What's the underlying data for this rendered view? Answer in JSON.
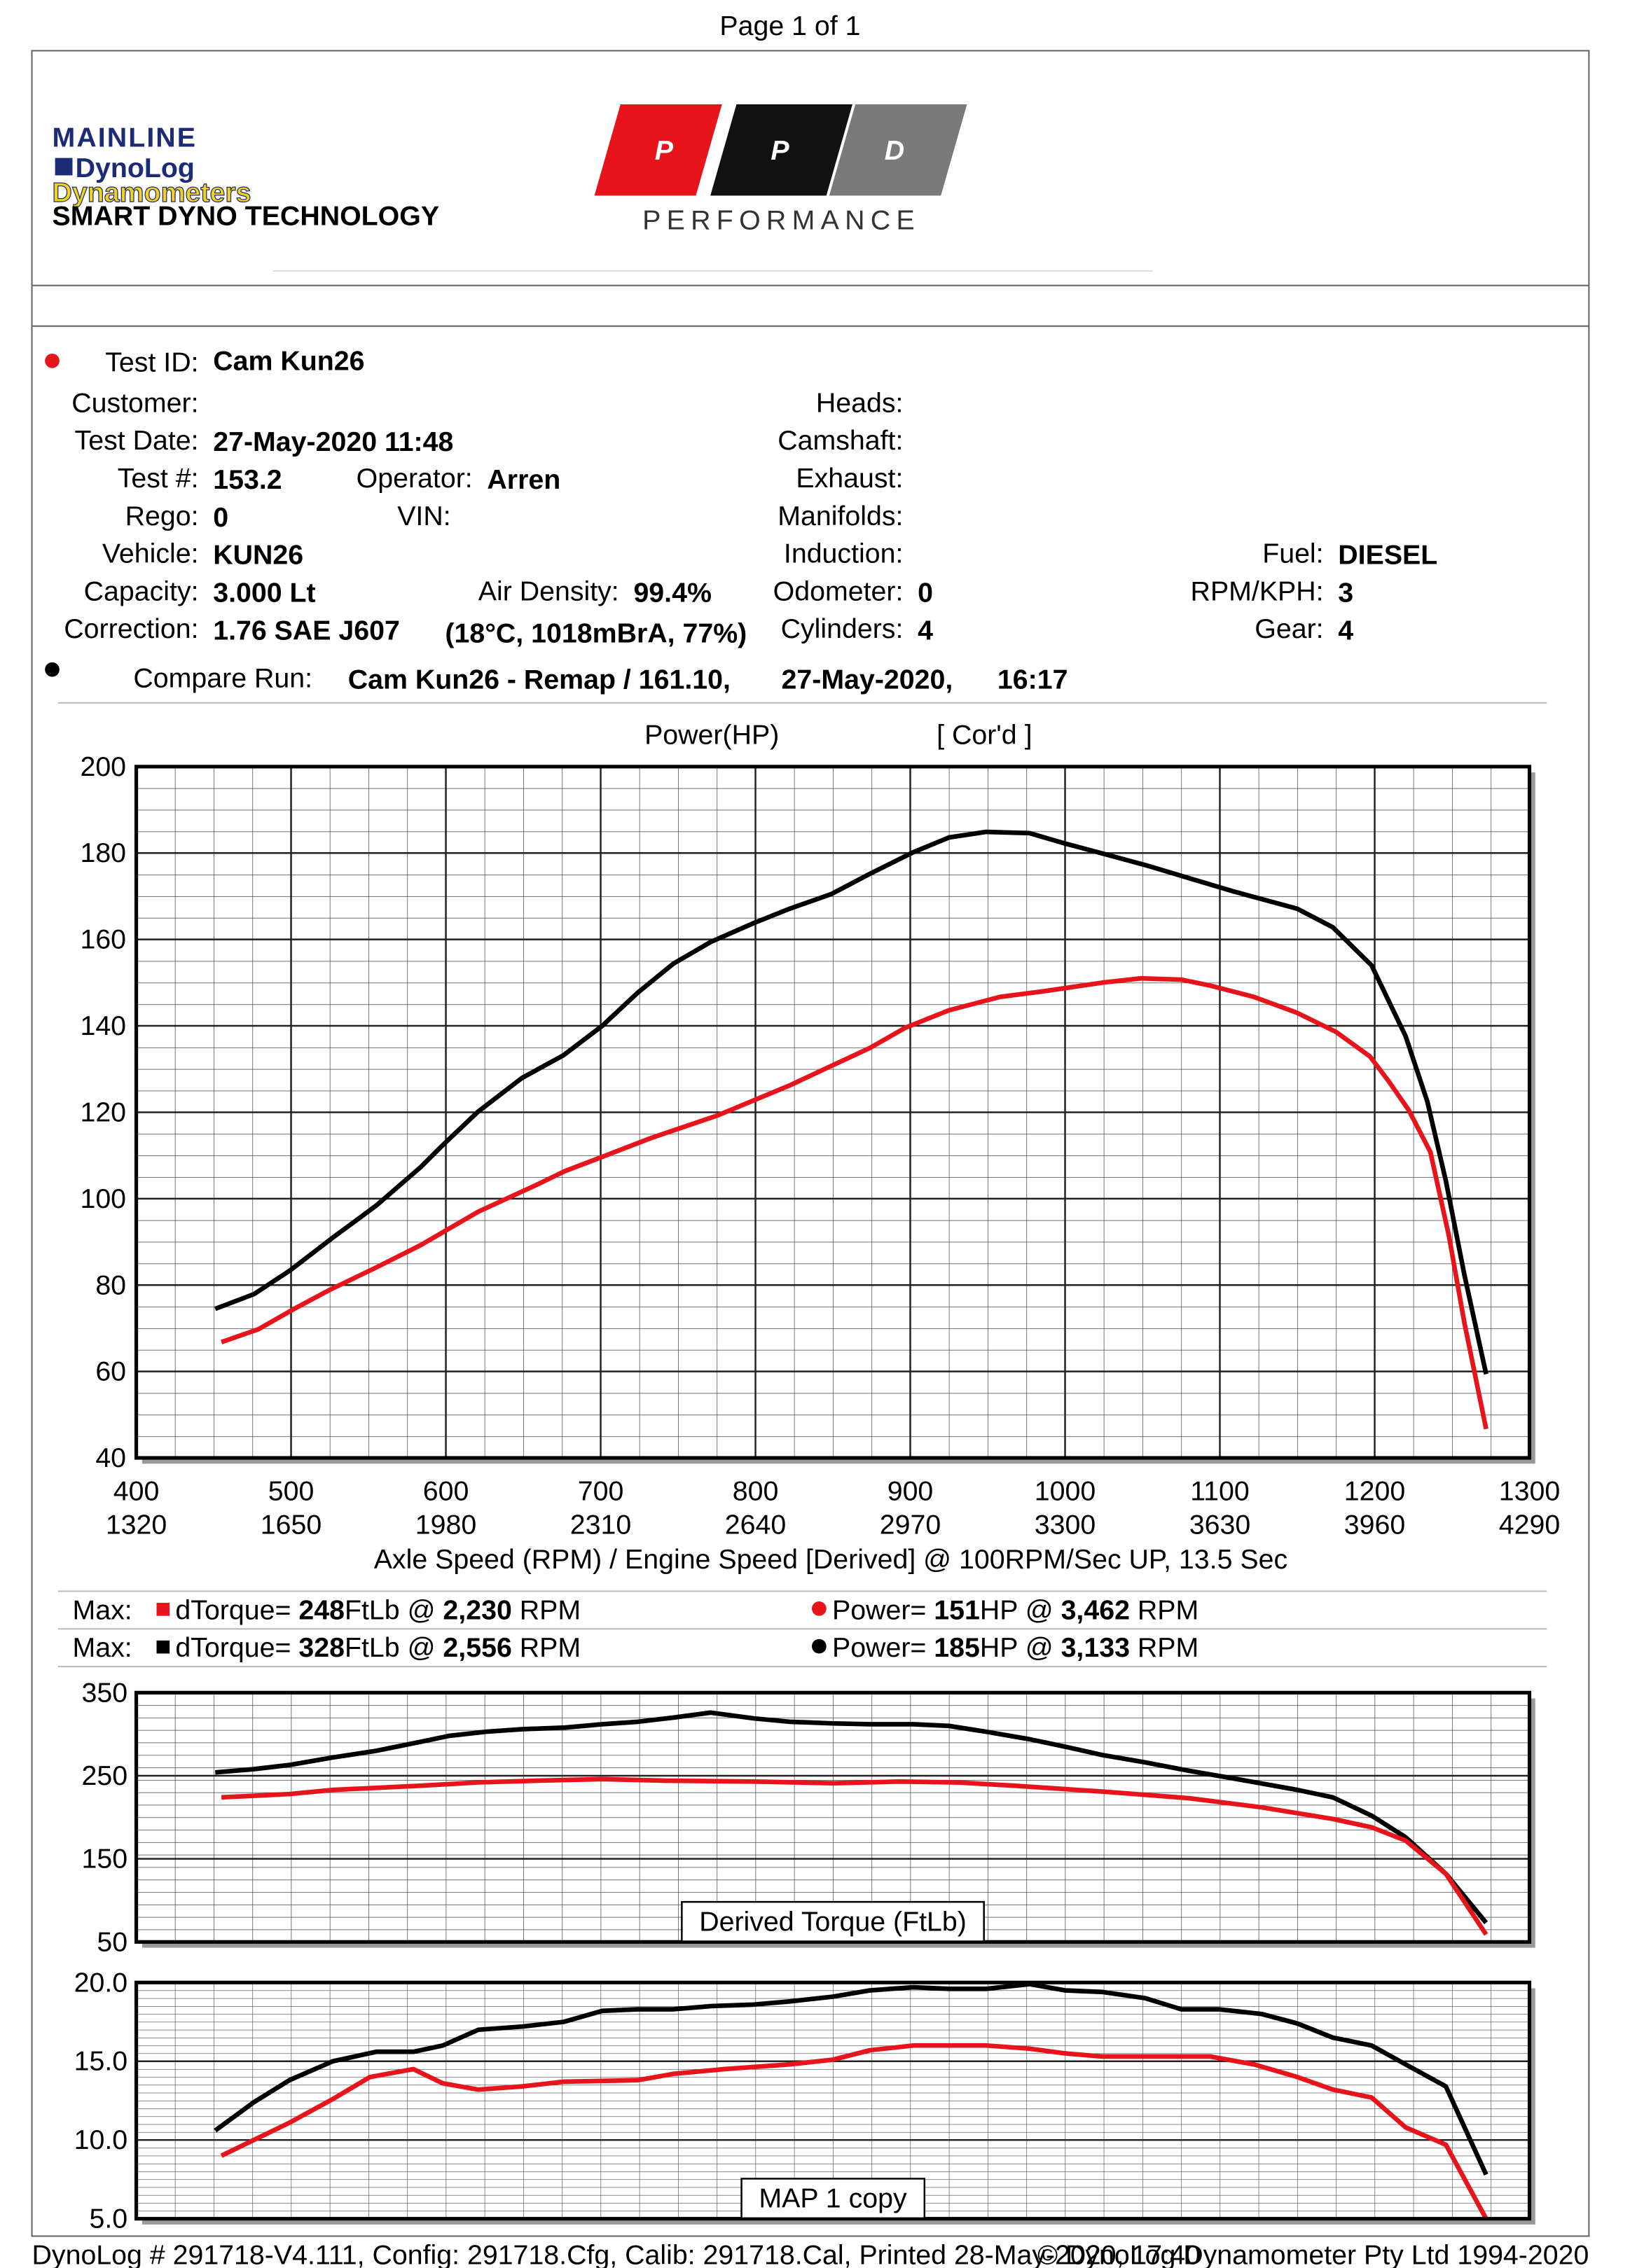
{
  "page_label": "Page 1 of 1",
  "logos": {
    "mainline": "MAINLINE",
    "dynolog": "DynoLog",
    "dynamometers": "Dynamometers",
    "tagline": "SMART DYNO TECHNOLOGY",
    "ppd_letters": [
      "P",
      "P",
      "D"
    ],
    "ppd_sub": "PERFORMANCE"
  },
  "info": {
    "test_id": {
      "label": "Test ID:",
      "value": "Cam Kun26"
    },
    "customer": {
      "label": "Customer:"
    },
    "test_date": {
      "label": "Test Date:",
      "value": "27-May-2020 11:48"
    },
    "test_no": {
      "label": "Test #:",
      "value": "153.2"
    },
    "operator": {
      "label": "Operator:",
      "value": "Arren"
    },
    "rego": {
      "label": "Rego:",
      "value": "0"
    },
    "vin": {
      "label": "VIN:"
    },
    "vehicle": {
      "label": "Vehicle:",
      "value": "KUN26"
    },
    "capacity": {
      "label": "Capacity:",
      "value": "3.000 Lt"
    },
    "air_density": {
      "label": "Air Density:",
      "value": "99.4%"
    },
    "correction": {
      "label": "Correction:",
      "value": "1.76 SAE J607",
      "conditions": "(18°C, 1018mBrA, 77%)"
    },
    "heads": {
      "label": "Heads:"
    },
    "camshaft": {
      "label": "Camshaft:"
    },
    "exhaust": {
      "label": "Exhaust:"
    },
    "manifolds": {
      "label": "Manifolds:"
    },
    "induction": {
      "label": "Induction:"
    },
    "odometer": {
      "label": "Odometer:",
      "value": "0"
    },
    "cylinders": {
      "label": "Cylinders:",
      "value": "4"
    },
    "fuel": {
      "label": "Fuel:",
      "value": "DIESEL"
    },
    "rpm_kph": {
      "label": "RPM/KPH:",
      "value": "3"
    },
    "gear": {
      "label": "Gear:",
      "value": "4"
    }
  },
  "compare_run": {
    "label": "Compare Run:",
    "name": "Cam Kun26 - Remap / 161.10,",
    "date": "27-May-2020,",
    "time": "16:17"
  },
  "max_rows": [
    {
      "label": "Max:",
      "torque_label": "dTorque=",
      "torque": "248",
      "torque_unit": "FtLb @",
      "torque_rpm": "2,230",
      "torque_rpm_unit": "RPM",
      "power_label": "Power=",
      "power": "151",
      "power_unit": "HP @",
      "power_rpm": "3,462",
      "power_rpm_unit": "RPM"
    },
    {
      "label": "Max:",
      "torque_label": "dTorque=",
      "torque": "328",
      "torque_unit": "FtLb @",
      "torque_rpm": "2,556",
      "torque_rpm_unit": "RPM",
      "power_label": "Power=",
      "power": "185",
      "power_unit": "HP @",
      "power_rpm": "3,133",
      "power_rpm_unit": "RPM"
    }
  ],
  "chart_data": [
    {
      "type": "line",
      "title": "Power(HP)",
      "subtitle": "[ Cor'd ]",
      "x_label": "Axle Speed (RPM) / Engine Speed [Derived] @ 100RPM/Sec UP, 13.5 Sec",
      "xlim": [
        400,
        1300
      ],
      "xticks": [
        400,
        500,
        600,
        700,
        800,
        900,
        1000,
        1100,
        1200,
        1300
      ],
      "x2lim": [
        1320,
        4290
      ],
      "x2ticks": [
        1320,
        1650,
        1980,
        2310,
        2640,
        2970,
        3300,
        3630,
        3960,
        4290
      ],
      "ylim": [
        40,
        200
      ],
      "yticks": [
        40,
        60,
        80,
        100,
        120,
        140,
        160,
        180,
        200
      ],
      "grid": true,
      "series": [
        {
          "color": "#000000",
          "x": [
            451,
            476,
            499,
            527,
            555,
            584,
            598,
            621,
            649,
            676,
            701,
            724,
            747,
            771,
            799,
            822,
            849,
            874,
            902,
            925,
            949,
            977,
            1000,
            1024,
            1052,
            1080,
            1108,
            1150,
            1173,
            1198,
            1220,
            1234,
            1246,
            1258,
            1272
          ],
          "values": [
            74.5,
            77.9,
            83.3,
            91.0,
            98.4,
            107.4,
            112.4,
            120.2,
            127.9,
            133.2,
            140.0,
            147.7,
            154.4,
            159.4,
            163.8,
            167.1,
            170.5,
            175.2,
            180.2,
            183.6,
            184.9,
            184.6,
            182.2,
            179.9,
            177.2,
            174.2,
            171.2,
            167.1,
            162.8,
            154.0,
            137.6,
            122.5,
            104.1,
            82.3,
            59.4
          ]
        },
        {
          "color": "#e8141c",
          "x": [
            455,
            479,
            502,
            525,
            554,
            584,
            621,
            658,
            677,
            699,
            733,
            775,
            822,
            850,
            874,
            897,
            925,
            958,
            986,
            1024,
            1049,
            1075,
            1094,
            1122,
            1150,
            1175,
            1197,
            1209,
            1222,
            1236,
            1248,
            1258,
            1272
          ],
          "values": [
            66.8,
            69.8,
            74.5,
            78.9,
            83.9,
            89.3,
            97,
            103.1,
            106.4,
            109.4,
            114.1,
            119.2,
            126.2,
            130.9,
            134.9,
            139.6,
            143.6,
            146.7,
            148,
            150,
            151,
            150.7,
            149.3,
            146.7,
            143,
            138.6,
            132.9,
            127.2,
            120.5,
            110.8,
            91.3,
            71.2,
            46.7
          ]
        }
      ]
    },
    {
      "type": "line",
      "title": "Derived Torque (FtLb)",
      "xlim": [
        400,
        1300
      ],
      "ylim": [
        50,
        350
      ],
      "yticks": [
        50,
        150,
        250,
        350
      ],
      "grid": true,
      "series": [
        {
          "color": "#000000",
          "x": [
            451,
            476,
            499,
            527,
            555,
            584,
            602,
            626,
            649,
            677,
            701,
            724,
            747,
            771,
            799,
            822,
            850,
            874,
            902,
            925,
            949,
            977,
            1000,
            1024,
            1052,
            1080,
            1108,
            1150,
            1173,
            1198,
            1220,
            1246,
            1272
          ],
          "values": [
            254,
            258,
            263,
            272,
            280,
            291,
            298,
            303,
            306,
            308,
            312,
            315,
            320,
            326,
            319,
            315,
            313,
            312,
            312,
            310,
            303,
            294,
            285,
            275,
            266,
            256,
            247,
            233,
            224,
            202,
            176,
            132,
            73
          ]
        },
        {
          "color": "#e8141c",
          "x": [
            455,
            499,
            527,
            584,
            621,
            658,
            701,
            743,
            799,
            850,
            893,
            930,
            967,
            1024,
            1080,
            1127,
            1173,
            1198,
            1220,
            1246,
            1272
          ],
          "values": [
            224,
            228,
            233,
            238,
            242,
            244,
            246,
            244,
            243,
            241,
            243,
            242,
            238,
            231,
            223,
            212,
            198,
            188,
            172,
            132,
            59
          ]
        }
      ]
    },
    {
      "type": "line",
      "title": "MAP 1 copy",
      "xlim": [
        400,
        1300
      ],
      "ylim": [
        5,
        20
      ],
      "yticks": [
        {
          "value": 5,
          "label": "5.0"
        },
        {
          "value": 10,
          "label": "10.0"
        },
        {
          "value": 15,
          "label": "15.0"
        },
        {
          "value": 20,
          "label": "20.0"
        }
      ],
      "grid": true,
      "series": [
        {
          "color": "#000000",
          "x": [
            451,
            476,
            499,
            527,
            555,
            579,
            598,
            621,
            649,
            676,
            701,
            724,
            747,
            771,
            799,
            822,
            850,
            874,
            902,
            925,
            949,
            977,
            1000,
            1024,
            1052,
            1075,
            1099,
            1127,
            1150,
            1173,
            1198,
            1220,
            1246,
            1272
          ],
          "values": [
            10.6,
            12.4,
            13.8,
            15.0,
            15.6,
            15.6,
            16.0,
            17.0,
            17.2,
            17.5,
            18.2,
            18.3,
            18.3,
            18.5,
            18.6,
            18.8,
            19.1,
            19.5,
            19.7,
            19.6,
            19.6,
            19.9,
            19.5,
            19.4,
            19.0,
            18.3,
            18.3,
            18.0,
            17.4,
            16.5,
            16.0,
            14.8,
            13.4,
            7.8
          ]
        },
        {
          "color": "#e8141c",
          "x": [
            455,
            499,
            527,
            551,
            579,
            598,
            621,
            649,
            676,
            724,
            747,
            780,
            822,
            850,
            874,
            902,
            925,
            949,
            977,
            1000,
            1024,
            1052,
            1094,
            1122,
            1150,
            1173,
            1198,
            1220,
            1246,
            1272
          ],
          "values": [
            9.0,
            11.1,
            12.6,
            14.0,
            14.5,
            13.6,
            13.2,
            13.4,
            13.7,
            13.8,
            14.2,
            14.5,
            14.8,
            15.1,
            15.7,
            16.0,
            16.0,
            16.0,
            15.8,
            15.5,
            15.3,
            15.3,
            15.3,
            14.8,
            14.0,
            13.2,
            12.7,
            10.8,
            9.7,
            5.0
          ]
        }
      ]
    }
  ],
  "footer": {
    "left": "DynoLog # 291718-V4.111, Config: 291718.Cfg, Calib: 291718.Cal, Printed 28-May-2020, 17:40",
    "right": "© DynoLog Dynamometer Pty Ltd 1994-2020"
  }
}
